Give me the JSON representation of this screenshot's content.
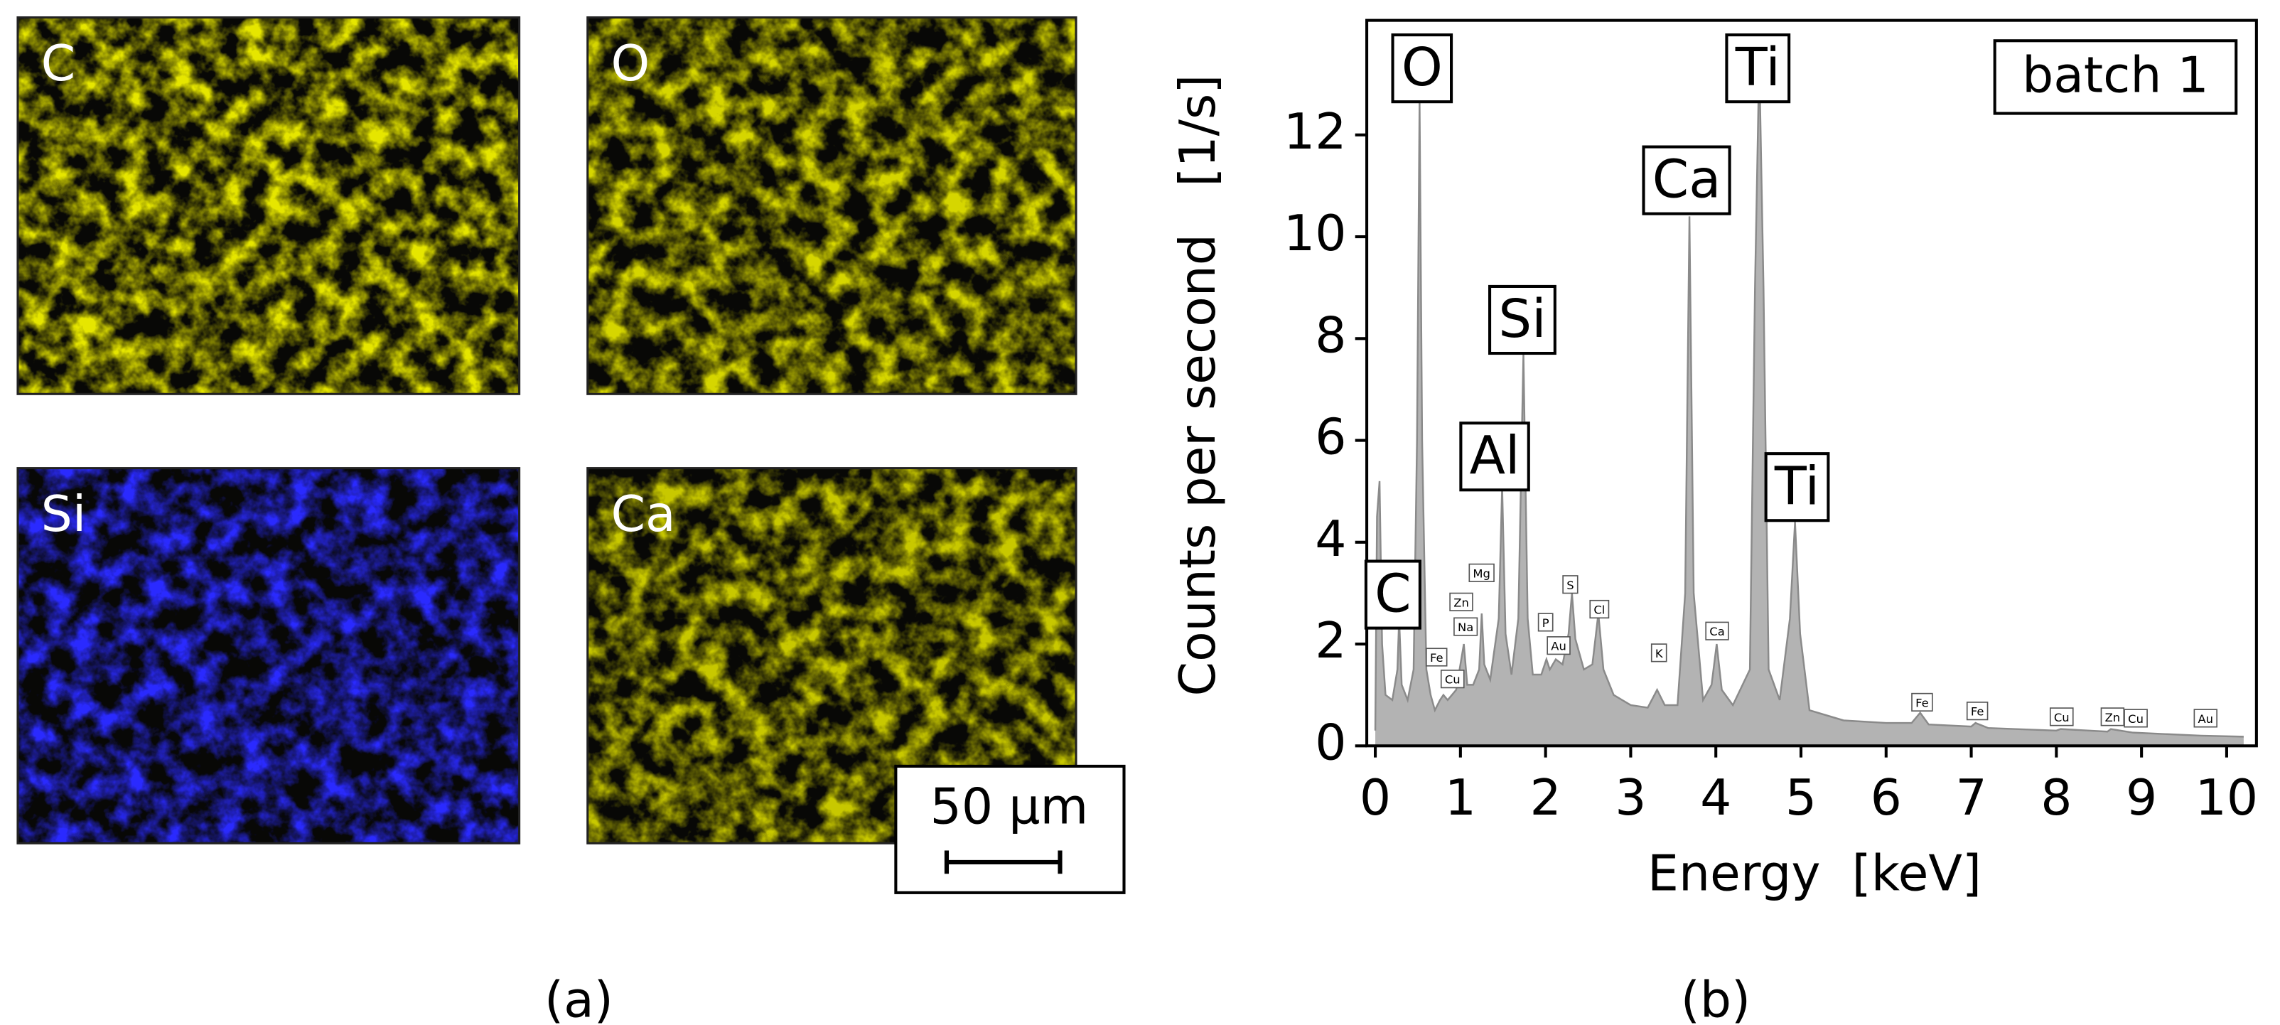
{
  "maps": [
    {
      "label": "C",
      "color": "#e6e600"
    },
    {
      "label": "O",
      "color": "#d6d600"
    },
    {
      "label": "Si",
      "color": "#2a2aff"
    },
    {
      "label": "Ca",
      "color": "#c8c800"
    }
  ],
  "scale_bar": "50 µm",
  "captions": [
    "(a)",
    "(b)"
  ],
  "chart_data": {
    "type": "area",
    "xlabel": "Energy  [keV]",
    "ylabel": "Counts per second   [1/s]",
    "legend_box": "batch 1",
    "color": "#b3b3b3",
    "xlim": [
      -0.1,
      10.35
    ],
    "ylim": [
      0,
      14.25
    ],
    "xticks": [
      0,
      1,
      2,
      3,
      4,
      5,
      6,
      7,
      8,
      9,
      10
    ],
    "yticks": [
      0,
      2,
      4,
      6,
      8,
      10,
      12
    ],
    "x": [
      0.0,
      0.02,
      0.05,
      0.08,
      0.12,
      0.2,
      0.26,
      0.28,
      0.31,
      0.38,
      0.45,
      0.49,
      0.52,
      0.55,
      0.6,
      0.65,
      0.7,
      0.76,
      0.8,
      0.85,
      0.9,
      0.95,
      1.01,
      1.04,
      1.08,
      1.15,
      1.22,
      1.25,
      1.28,
      1.35,
      1.45,
      1.49,
      1.53,
      1.6,
      1.68,
      1.74,
      1.79,
      1.85,
      1.95,
      2.01,
      2.05,
      2.12,
      2.2,
      2.27,
      2.31,
      2.35,
      2.45,
      2.55,
      2.62,
      2.68,
      2.8,
      3.0,
      3.2,
      3.31,
      3.4,
      3.55,
      3.64,
      3.69,
      3.74,
      3.85,
      3.95,
      4.01,
      4.07,
      4.2,
      4.4,
      4.46,
      4.51,
      4.56,
      4.62,
      4.75,
      4.87,
      4.93,
      4.99,
      5.1,
      5.5,
      6.0,
      6.3,
      6.4,
      6.5,
      7.0,
      7.05,
      7.2,
      8.0,
      8.05,
      8.6,
      8.64,
      8.9,
      9.7,
      10.2
    ],
    "values": [
      0.3,
      4.5,
      5.2,
      2.0,
      1.0,
      0.9,
      1.5,
      2.5,
      1.2,
      0.9,
      1.5,
      6,
      12.7,
      6,
      1.5,
      1.0,
      0.7,
      0.9,
      1.0,
      0.9,
      1.0,
      1.1,
      1.7,
      2.0,
      1.2,
      1.2,
      1.5,
      2.6,
      1.6,
      1.3,
      2.5,
      5.1,
      2.2,
      1.4,
      2.5,
      7.7,
      2.5,
      1.4,
      1.4,
      1.7,
      1.5,
      1.7,
      1.6,
      2.2,
      3.0,
      2.1,
      1.5,
      1.6,
      2.6,
      1.5,
      1.0,
      0.8,
      0.75,
      1.1,
      0.8,
      0.8,
      3.0,
      10.4,
      3.0,
      0.9,
      1.2,
      2.0,
      1.1,
      0.8,
      1.5,
      9,
      13.5,
      9,
      1.5,
      0.9,
      2.5,
      4.4,
      2.2,
      0.7,
      0.5,
      0.45,
      0.45,
      0.65,
      0.42,
      0.38,
      0.45,
      0.35,
      0.3,
      0.33,
      0.28,
      0.33,
      0.26,
      0.2,
      0.18
    ],
    "annotations": [
      "O",
      "Ti",
      "Ca",
      "Si",
      "Al",
      "Ti",
      "C"
    ],
    "small_annotations": [
      "Fe",
      "Cu",
      "Zn",
      "Na",
      "Mg",
      "P",
      "Au",
      "S",
      "Cl",
      "K",
      "Ca",
      "Fe",
      "Fe",
      "Cu",
      "Zn",
      "Cu",
      "Au"
    ]
  }
}
